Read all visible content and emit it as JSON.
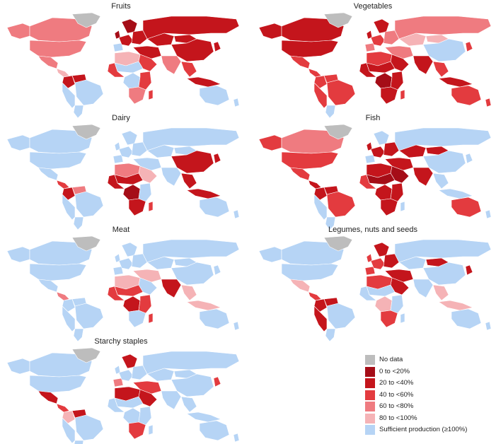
{
  "panels": [
    {
      "title": "Fruits",
      "fills": {
        "greenland": "nodata",
        "canada": "c60",
        "usa": "c60",
        "alaska": "c60",
        "mexico": "c60",
        "centam": "c80",
        "colombia": "c20",
        "venezuela": "c20",
        "brazil": "ok",
        "andes": "ok",
        "argentina": "ok",
        "uk": "c0",
        "scandinavia": "c0",
        "weurope": "c20",
        "eeurope": "c20",
        "iberia": "ok",
        "russia": "c20",
        "kazakh": "c20",
        "mongolia": "c20",
        "china": "c20",
        "india": "c60",
        "seasia": "c40",
        "indonesia": "c20",
        "japan": "c20",
        "middleeast": "c20",
        "arabia": "c40",
        "nafrica": "c80",
        "sahel": "ok",
        "westafrica": "c40",
        "centralafrica": "ok",
        "eastafrica": "c40",
        "southafrica": "c60",
        "madagascar": "c40",
        "australia": "ok",
        "nz": "ok"
      }
    },
    {
      "title": "Vegetables",
      "fills": {
        "greenland": "nodata",
        "canada": "c20",
        "usa": "c20",
        "alaska": "c20",
        "mexico": "c40",
        "centam": "c40",
        "colombia": "c40",
        "venezuela": "c40",
        "brazil": "c40",
        "andes": "c40",
        "argentina": "ok",
        "uk": "c20",
        "scandinavia": "c20",
        "weurope": "c40",
        "eeurope": "c60",
        "iberia": "c60",
        "russia": "c60",
        "kazakh": "c80",
        "mongolia": "c80",
        "china": "ok",
        "india": "c20",
        "seasia": "c40",
        "indonesia": "c20",
        "japan": "c40",
        "middleeast": "c60",
        "arabia": "c20",
        "nafrica": "c40",
        "sahel": "c20",
        "westafrica": "c20",
        "centralafrica": "c0",
        "eastafrica": "c20",
        "southafrica": "c20",
        "madagascar": "c40",
        "australia": "c40",
        "nz": "c40"
      }
    },
    {
      "title": "Dairy",
      "fills": {
        "greenland": "nodata",
        "canada": "ok",
        "usa": "ok",
        "alaska": "ok",
        "mexico": "ok",
        "centam": "c40",
        "colombia": "c20",
        "venezuela": "c60",
        "brazil": "ok",
        "andes": "ok",
        "argentina": "ok",
        "uk": "ok",
        "scandinavia": "ok",
        "weurope": "ok",
        "eeurope": "ok",
        "iberia": "ok",
        "russia": "ok",
        "kazakh": "ok",
        "mongolia": "ok",
        "china": "c20",
        "india": "ok",
        "seasia": "c20",
        "indonesia": "c20",
        "japan": "c20",
        "middleeast": "ok",
        "arabia": "c80",
        "nafrica": "c60",
        "sahel": "c20",
        "westafrica": "c20",
        "centralafrica": "c0",
        "eastafrica": "ok",
        "southafrica": "c20",
        "madagascar": "c40",
        "australia": "ok",
        "nz": "ok"
      }
    },
    {
      "title": "Fish",
      "fills": {
        "greenland": "nodata",
        "canada": "c60",
        "usa": "c40",
        "alaska": "c40",
        "mexico": "c40",
        "centam": "c20",
        "colombia": "c20",
        "venezuela": "c20",
        "brazil": "c40",
        "andes": "ok",
        "argentina": "ok",
        "uk": "c20",
        "scandinavia": "ok",
        "weurope": "c20",
        "eeurope": "c20",
        "iberia": "ok",
        "russia": "ok",
        "kazakh": "c20",
        "mongolia": "c20",
        "china": "ok",
        "india": "c20",
        "seasia": "ok",
        "indonesia": "ok",
        "japan": "ok",
        "middleeast": "c20",
        "arabia": "c0",
        "nafrica": "c20",
        "sahel": "c0",
        "westafrica": "c40",
        "centralafrica": "c20",
        "eastafrica": "c20",
        "southafrica": "c20",
        "madagascar": "ok",
        "australia": "c40",
        "nz": "ok"
      }
    },
    {
      "title": "Meat",
      "fills": {
        "greenland": "nodata",
        "canada": "ok",
        "usa": "ok",
        "alaska": "ok",
        "mexico": "ok",
        "centam": "c60",
        "colombia": "ok",
        "venezuela": "ok",
        "brazil": "ok",
        "andes": "ok",
        "argentina": "ok",
        "uk": "ok",
        "scandinavia": "ok",
        "weurope": "ok",
        "eeurope": "ok",
        "iberia": "ok",
        "russia": "ok",
        "kazakh": "ok",
        "mongolia": "ok",
        "china": "ok",
        "india": "c20",
        "seasia": "c80",
        "indonesia": "c80",
        "japan": "ok",
        "middleeast": "c80",
        "arabia": "ok",
        "nafrica": "c80",
        "sahel": "c40",
        "westafrica": "c40",
        "centralafrica": "c20",
        "eastafrica": "c40",
        "southafrica": "ok",
        "madagascar": "c40",
        "australia": "ok",
        "nz": "ok"
      }
    },
    {
      "title": "Legumes, nuts and seeds",
      "fills": {
        "greenland": "nodata",
        "canada": "ok",
        "usa": "ok",
        "alaska": "ok",
        "mexico": "c80",
        "centam": "c40",
        "colombia": "c20",
        "venezuela": "c20",
        "brazil": "ok",
        "andes": "c20",
        "argentina": "ok",
        "uk": "c40",
        "scandinavia": "c20",
        "weurope": "c40",
        "eeurope": "c20",
        "iberia": "c40",
        "russia": "ok",
        "kazakh": "ok",
        "mongolia": "c20",
        "china": "ok",
        "india": "ok",
        "seasia": "c80",
        "indonesia": "c80",
        "japan": "c20",
        "middleeast": "c20",
        "arabia": "c20",
        "nafrica": "c40",
        "sahel": "ok",
        "westafrica": "ok",
        "centralafrica": "c80",
        "eastafrica": "ok",
        "southafrica": "c40",
        "madagascar": "ok",
        "australia": "ok",
        "nz": "ok"
      }
    },
    {
      "title": "Starchy staples",
      "fills": {
        "greenland": "nodata",
        "canada": "ok",
        "usa": "ok",
        "alaska": "ok",
        "mexico": "c20",
        "centam": "c40",
        "colombia": "c80",
        "venezuela": "c20",
        "brazil": "ok",
        "andes": "ok",
        "argentina": "ok",
        "uk": "ok",
        "scandinavia": "c20",
        "weurope": "ok",
        "eeurope": "ok",
        "iberia": "c60",
        "russia": "ok",
        "kazakh": "ok",
        "mongolia": "ok",
        "china": "ok",
        "india": "ok",
        "seasia": "ok",
        "indonesia": "ok",
        "japan": "c40",
        "middleeast": "c40",
        "arabia": "c20",
        "nafrica": "c20",
        "sahel": "ok",
        "westafrica": "ok",
        "centralafrica": "ok",
        "eastafrica": "ok",
        "southafrica": "c40",
        "madagascar": "ok",
        "australia": "ok",
        "nz": "ok"
      }
    }
  ],
  "legend": [
    {
      "key": "nodata",
      "label": "No data",
      "color": "#bdbdbd"
    },
    {
      "key": "c0",
      "label": "0 to <20%",
      "color": "#a50d17"
    },
    {
      "key": "c20",
      "label": "20 to <40%",
      "color": "#c4151c"
    },
    {
      "key": "c40",
      "label": "40 to <60%",
      "color": "#e33b3f"
    },
    {
      "key": "c60",
      "label": "60 to <80%",
      "color": "#ef7b80"
    },
    {
      "key": "c80",
      "label": "80 to <100%",
      "color": "#f5b3b6"
    },
    {
      "key": "ok",
      "label": "Sufficient production (≥100%)",
      "color": "#b6d4f5"
    }
  ]
}
